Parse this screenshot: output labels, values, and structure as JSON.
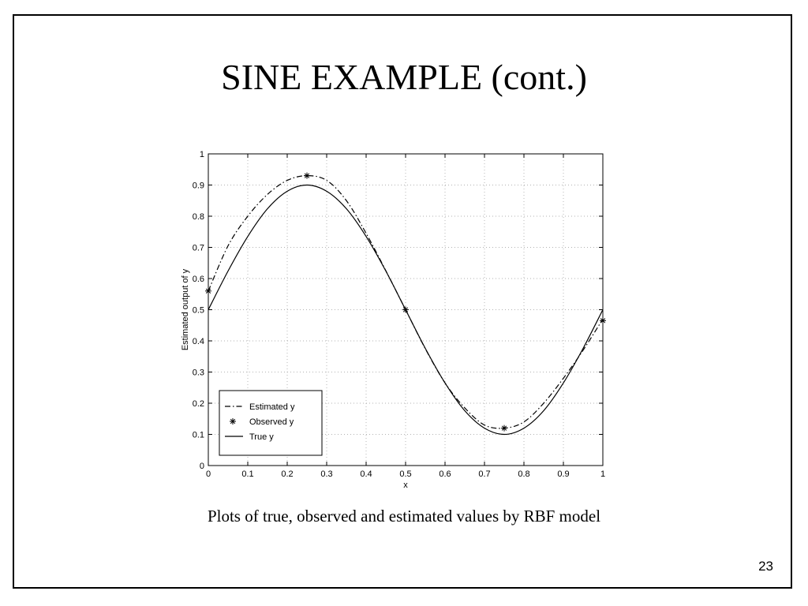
{
  "slide": {
    "title": "SINE EXAMPLE (cont.)",
    "caption": "Plots of true, observed and estimated values by RBF model",
    "page_number": "23"
  },
  "chart_data": {
    "type": "line",
    "title": "",
    "xlabel": "x",
    "ylabel": "Estimated output of y",
    "xlim": [
      0,
      1
    ],
    "ylim": [
      0,
      1
    ],
    "xticks": [
      "0",
      "0.1",
      "0.2",
      "0.3",
      "0.4",
      "0.5",
      "0.6",
      "0.7",
      "0.8",
      "0.9",
      "1"
    ],
    "yticks": [
      "0",
      "0.1",
      "0.2",
      "0.3",
      "0.4",
      "0.5",
      "0.6",
      "0.7",
      "0.8",
      "0.9",
      "1"
    ],
    "grid": true,
    "legend_position": "bottom-left",
    "series": [
      {
        "name": "Estimated y",
        "style": "dash-dot",
        "color": "#000000",
        "x": [
          0,
          0.05,
          0.1,
          0.15,
          0.2,
          0.25,
          0.3,
          0.35,
          0.4,
          0.45,
          0.5,
          0.55,
          0.6,
          0.65,
          0.7,
          0.75,
          0.8,
          0.85,
          0.9,
          0.95,
          1.0
        ],
        "y": [
          0.56,
          0.705,
          0.8,
          0.87,
          0.915,
          0.93,
          0.915,
          0.85,
          0.745,
          0.625,
          0.5,
          0.375,
          0.265,
          0.185,
          0.13,
          0.12,
          0.14,
          0.2,
          0.28,
          0.37,
          0.47
        ]
      },
      {
        "name": "Observed y",
        "style": "marker",
        "color": "#000000",
        "x": [
          0,
          0.25,
          0.5,
          0.75,
          1.0
        ],
        "y": [
          0.56,
          0.93,
          0.5,
          0.12,
          0.465
        ]
      },
      {
        "name": "True y",
        "style": "solid",
        "color": "#000000",
        "x": [
          0,
          0.05,
          0.1,
          0.15,
          0.2,
          0.25,
          0.3,
          0.35,
          0.4,
          0.45,
          0.5,
          0.55,
          0.6,
          0.65,
          0.7,
          0.75,
          0.8,
          0.85,
          0.9,
          0.95,
          1.0
        ],
        "y": [
          0.5,
          0.624,
          0.735,
          0.824,
          0.88,
          0.9,
          0.88,
          0.824,
          0.735,
          0.624,
          0.5,
          0.376,
          0.265,
          0.176,
          0.12,
          0.1,
          0.12,
          0.176,
          0.265,
          0.376,
          0.5
        ]
      }
    ]
  }
}
